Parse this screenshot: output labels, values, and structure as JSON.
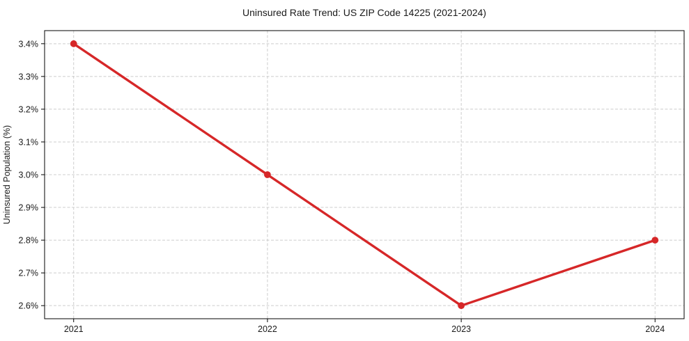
{
  "chart_data": {
    "type": "line",
    "title": "Uninsured Rate Trend: US ZIP Code 14225 (2021-2024)",
    "xlabel": "",
    "ylabel": "Uninsured Population (%)",
    "x": [
      2021,
      2022,
      2023,
      2024
    ],
    "x_tick_labels": [
      "2021",
      "2022",
      "2023",
      "2024"
    ],
    "y_ticks": [
      2.6,
      2.7,
      2.8,
      2.9,
      3.0,
      3.1,
      3.2,
      3.3,
      3.4
    ],
    "y_tick_labels": [
      "2.6%",
      "2.7%",
      "2.8%",
      "2.9%",
      "3.0%",
      "3.1%",
      "3.2%",
      "3.3%",
      "3.4%"
    ],
    "series": [
      {
        "name": "uninsured-rate",
        "values": [
          3.4,
          3.0,
          2.6,
          2.8
        ]
      }
    ],
    "xlim": [
      2020.85,
      2024.15
    ],
    "ylim": [
      2.56,
      3.44
    ],
    "grid": true,
    "grid_style": "dashed",
    "legend": "none",
    "line_color": "#d62728",
    "marker_color": "#d62728",
    "grid_color": "#cccccc",
    "frame_color": "#000000",
    "text_color": "#1a1a1a",
    "background_color": "#ffffff"
  }
}
